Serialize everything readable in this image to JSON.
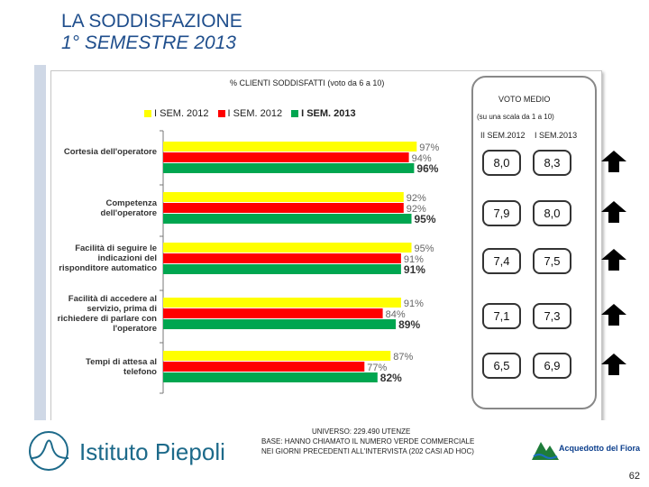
{
  "title": {
    "line1": "LA SODDISFAZIONE",
    "line2": "1° SEMESTRE 2013"
  },
  "colors": {
    "yellow": "#ffff00",
    "red": "#ff0000",
    "green": "#00a650",
    "title_blue": "#1f4e8c"
  },
  "chart_data": {
    "type": "bar",
    "orientation": "horizontal",
    "title": "% CLIENTI SODDISFATTI (voto da 6 a 10)",
    "categories": [
      "Cortesia dell'operatore",
      "Competenza dell'operatore",
      "Facilità di seguire le indicazioni del risponditore automatico",
      "Facilità di accedere al servizio, prima di richiedere di parlare con l'operatore",
      "Tempi di attesa al telefono"
    ],
    "series": [
      {
        "name": "I SEM. 2012",
        "color": "#ffff00",
        "values": [
          97,
          92,
          95,
          91,
          87
        ]
      },
      {
        "name": "I SEM. 2012",
        "color": "#ff0000",
        "values": [
          94,
          92,
          91,
          84,
          77
        ]
      },
      {
        "name": "I SEM. 2013",
        "color": "#00a650",
        "values": [
          96,
          95,
          91,
          89,
          82
        ]
      }
    ],
    "value_labels": [
      [
        "97%",
        "94%",
        "96%"
      ],
      [
        "92%",
        "92%",
        "95%"
      ],
      [
        "95%",
        "91%",
        "91%"
      ],
      [
        "91%",
        "84%",
        "89%"
      ],
      [
        "87%",
        "77%",
        "82%"
      ]
    ],
    "legend": "top",
    "grid": false
  },
  "voto_medio": {
    "title": "VOTO MEDIO",
    "subtitle": "(su una scala da 1 a 10)",
    "col1": "II SEM.2012",
    "col2": "I SEM.2013",
    "rows": [
      {
        "a": "8,0",
        "b": "8,3"
      },
      {
        "a": "7,9",
        "b": "8,0"
      },
      {
        "a": "7,4",
        "b": "7,5"
      },
      {
        "a": "7,1",
        "b": "7,3"
      },
      {
        "a": "6,5",
        "b": "6,9"
      }
    ]
  },
  "footer": {
    "line1": "UNIVERSO: 229.490 UTENZE",
    "line2": "BASE: HANNO CHIAMATO IL NUMERO VERDE COMMERCIALE",
    "line3": "NEI GIORNI PRECEDENTI ALL'INTERVISTA (202 CASI AD HOC)"
  },
  "logos": {
    "left": "Istituto Piepoli",
    "right": "Acquedotto del Fiora"
  },
  "page_number": "62"
}
